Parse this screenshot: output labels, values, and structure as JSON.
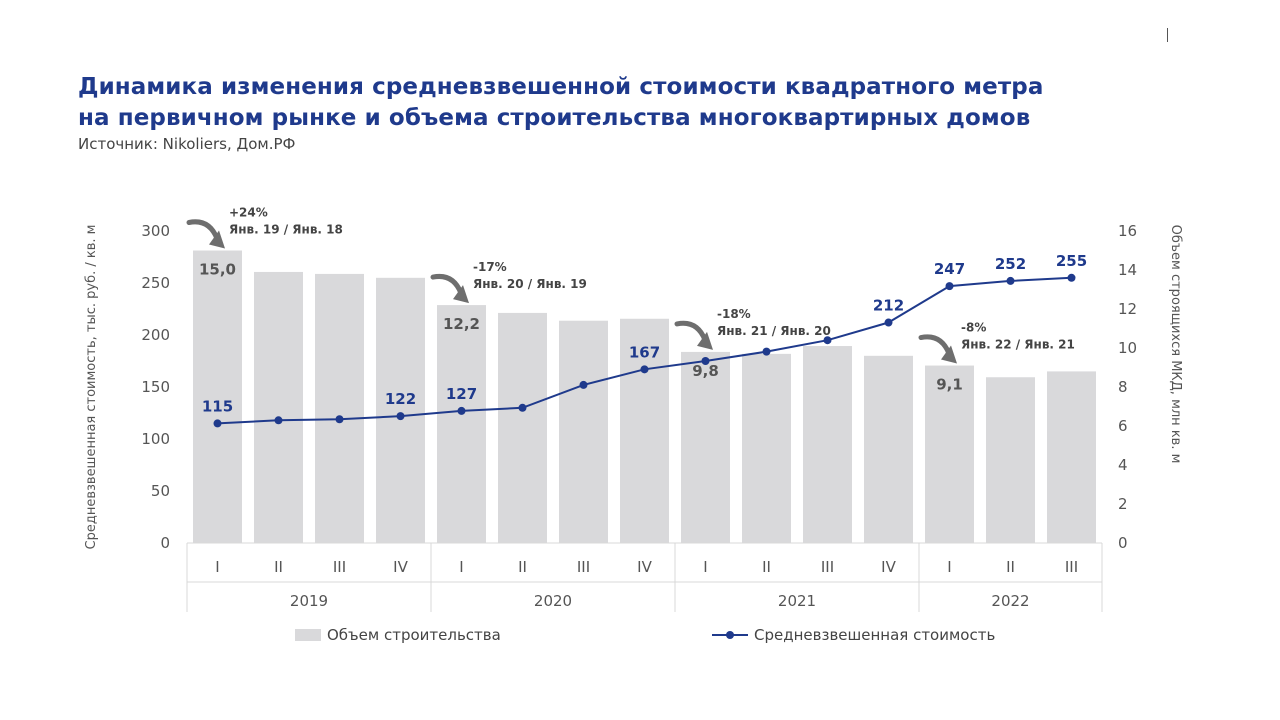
{
  "header": {
    "title_line1": "Динамика изменения средневзвешенной стоимости квадратного метра",
    "title_line2": "на первичном рынке и объема строительства многоквартирных домов",
    "source": "Источник: Nikoliers, Дом.РФ"
  },
  "colors": {
    "title": "#1f3a8c",
    "bars": "#d9d9db",
    "line": "#1f3a8c",
    "annotation_arrow": "#6e6e6e",
    "text": "#444444"
  },
  "chart_data": {
    "type": "bar+line",
    "categories": [
      "I",
      "II",
      "III",
      "IV",
      "I",
      "II",
      "III",
      "IV",
      "I",
      "II",
      "III",
      "IV",
      "I",
      "II",
      "III"
    ],
    "year_groups": [
      {
        "label": "2019",
        "count": 4
      },
      {
        "label": "2020",
        "count": 4
      },
      {
        "label": "2021",
        "count": 4
      },
      {
        "label": "2022",
        "count": 3
      }
    ],
    "series": [
      {
        "name": "Объем строительства",
        "type": "bar",
        "axis": "right",
        "values": [
          15.0,
          13.9,
          13.8,
          13.6,
          12.2,
          11.8,
          11.4,
          11.5,
          9.8,
          9.7,
          10.1,
          9.6,
          9.1,
          8.5,
          8.8
        ],
        "labels": {
          "0": "15,0",
          "4": "12,2",
          "8": "9,8",
          "12": "9,1"
        }
      },
      {
        "name": "Средневзвешенная стоимость",
        "type": "line",
        "axis": "left",
        "values": [
          115,
          118,
          119,
          122,
          127,
          130,
          152,
          167,
          175,
          184,
          195,
          212,
          247,
          252,
          255
        ],
        "labels": {
          "0": "115",
          "3": "122",
          "4": "127",
          "7": "167",
          "11": "212",
          "12": "247",
          "13": "252",
          "14": "255"
        }
      }
    ],
    "y_left": {
      "label": "Средневзвешенная стоимость, тыс. руб. / кв. м",
      "min": 0,
      "max": 300,
      "ticks": [
        0,
        50,
        100,
        150,
        200,
        250,
        300
      ]
    },
    "y_right": {
      "label": "Объем строящихся МКД, млн кв. м",
      "min": 0,
      "max": 16,
      "ticks": [
        0,
        2,
        4,
        6,
        8,
        10,
        12,
        14,
        16
      ]
    },
    "annotations": [
      {
        "index": 0,
        "pct": "+24%",
        "text": "Янв. 19 / Янв. 18"
      },
      {
        "index": 4,
        "pct": "-17%",
        "text": "Янв. 20 / Янв. 19"
      },
      {
        "index": 8,
        "pct": "-18%",
        "text": "Янв. 21 / Янв. 20"
      },
      {
        "index": 12,
        "pct": "-8%",
        "text": "Янв. 22 / Янв. 21"
      }
    ],
    "legend_position": "bottom"
  },
  "legend": {
    "bars_label": "Объем строительства",
    "line_label": "Средневзвешенная стоимость"
  }
}
